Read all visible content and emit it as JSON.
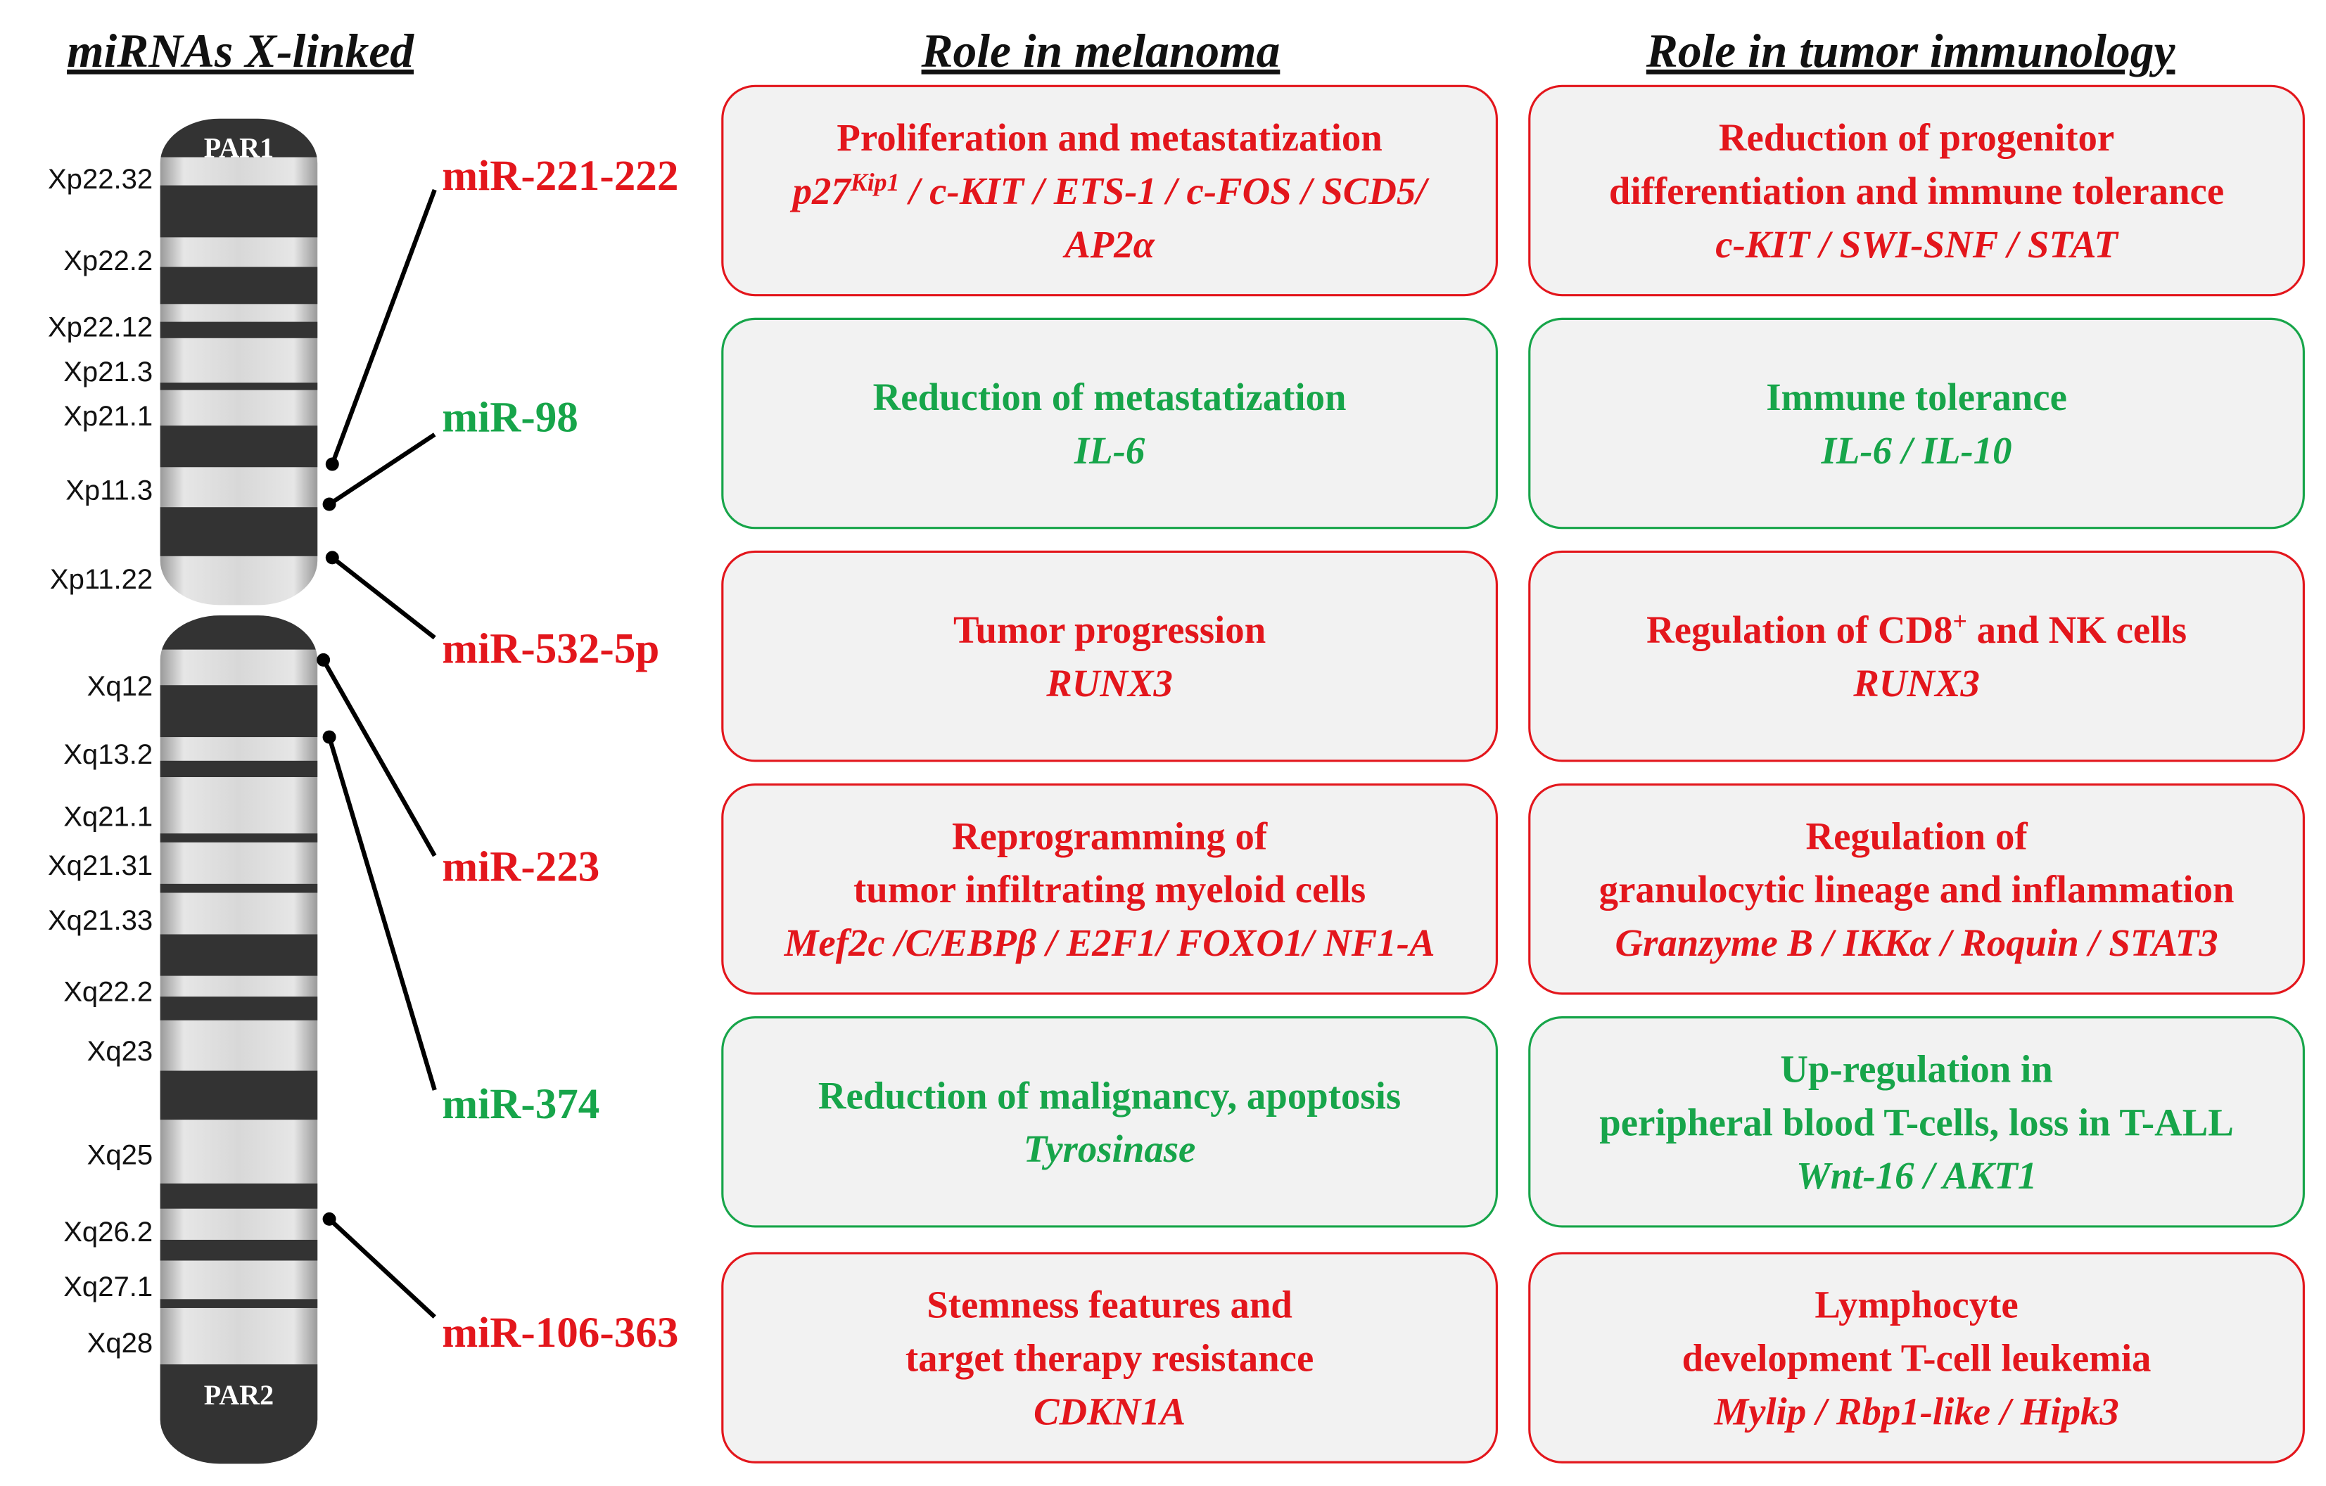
{
  "header": {
    "title": "miRNAs X-linked",
    "melanoma": "Role in melanoma",
    "immunology": "Role in tumor immunology"
  },
  "chromosome": {
    "top": "PAR1",
    "bottom": "PAR2",
    "bands": [
      "Xp22.32",
      "Xp22.2",
      "Xp22.12",
      "Xp21.3",
      "Xp21.1",
      "Xp11.3",
      "Xp11.22",
      "Xq12",
      "Xq13.2",
      "Xq21.1",
      "Xq21.31",
      "Xq21.33",
      "Xq22.2",
      "Xq23",
      "Xq25",
      "Xq26.2",
      "Xq27.1",
      "Xq28"
    ]
  },
  "rows": [
    {
      "name": "miR-221-222",
      "color": "#e3161c",
      "melanoma": {
        "text": [
          "Proliferation and metastatization"
        ],
        "genes": [
          [
            "p27",
            {
              "sup": "Kip1"
            },
            " / c-KIT / ETS-1 / c-FOS / SCD5/"
          ],
          "AP2α"
        ]
      },
      "immunology": {
        "text": [
          "Reduction of progenitor",
          "differentiation and immune tolerance"
        ],
        "genes": [
          "c-KIT  / SWI-SNF / STAT"
        ]
      }
    },
    {
      "name": "miR-98",
      "color": "#17a54a",
      "melanoma": {
        "text": [
          "Reduction of metastatization"
        ],
        "genes": [
          "IL-6"
        ]
      },
      "immunology": {
        "text": [
          "Immune tolerance"
        ],
        "genes": [
          "IL-6 / IL-10"
        ]
      }
    },
    {
      "name": "miR-532-5p",
      "color": "#e3161c",
      "melanoma": {
        "text": [
          "Tumor progression"
        ],
        "genes": [
          "RUNX3"
        ]
      },
      "immunology": {
        "text": [
          [
            "Regulation of CD8",
            {
              "sup": "+"
            },
            " and NK cells"
          ]
        ],
        "genes": [
          "RUNX3"
        ]
      }
    },
    {
      "name": "miR-223",
      "color": "#e3161c",
      "melanoma": {
        "text": [
          "Reprogramming of",
          "tumor infiltrating myeloid cells"
        ],
        "genes": [
          "Mef2c /C/EBPβ / E2F1/ FOXO1/ NF1-A"
        ]
      },
      "immunology": {
        "text": [
          "Regulation of",
          "granulocytic lineage and inflammation"
        ],
        "genes": [
          "Granzyme B / IKKα / Roquin / STAT3"
        ]
      }
    },
    {
      "name": "miR-374",
      "color": "#17a54a",
      "melanoma": {
        "text": [
          "Reduction of malignancy, apoptosis"
        ],
        "genes": [
          "Tyrosinase"
        ]
      },
      "immunology": {
        "text": [
          "Up-regulation in",
          "peripheral blood T-cells, loss in T-ALL"
        ],
        "genes": [
          "Wnt-16 / AKT1"
        ]
      }
    },
    {
      "name": "miR-106-363",
      "color": "#e3161c",
      "melanoma": {
        "text": [
          "Stemness features and",
          "target therapy resistance"
        ],
        "genes": [
          "CDKN1A"
        ]
      },
      "immunology": {
        "text": [
          "Lymphocyte",
          "development T-cell leukemia"
        ],
        "genes": [
          "Mylip / Rbp1-like / Hipk3"
        ]
      }
    }
  ]
}
